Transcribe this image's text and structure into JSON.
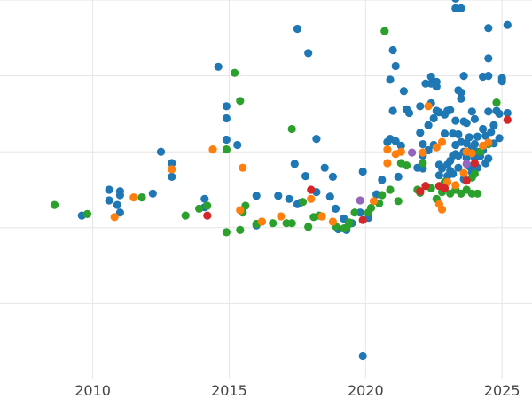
{
  "chart_data": {
    "type": "scatter",
    "title": "",
    "xlabel": "",
    "ylabel": "",
    "xlim": [
      2006.6,
      2026.1
    ],
    "ylim": [
      -1.0,
      4.0
    ],
    "x_ticks": [
      2010,
      2015,
      2020,
      2025
    ],
    "x_tick_labels": [
      "2010",
      "2015",
      "2020",
      "2025"
    ],
    "y_gridlines": [
      0,
      1,
      2,
      3,
      4
    ],
    "grid": true,
    "legend": "none",
    "series": [
      {
        "color": "#1f77b4",
        "points": [
          [
            2009.6,
            1.16
          ],
          [
            2010.6,
            1.5
          ],
          [
            2010.6,
            1.36
          ],
          [
            2011.0,
            1.48
          ],
          [
            2011.0,
            1.43
          ],
          [
            2010.9,
            1.3
          ],
          [
            2011.0,
            1.2
          ],
          [
            2012.2,
            1.45
          ],
          [
            2012.5,
            2.0
          ],
          [
            2012.9,
            1.67
          ],
          [
            2012.9,
            1.85
          ],
          [
            2014.1,
            1.38
          ],
          [
            2014.1,
            1.27
          ],
          [
            2014.6,
            3.12
          ],
          [
            2014.9,
            2.44
          ],
          [
            2014.9,
            2.6
          ],
          [
            2014.9,
            2.16
          ],
          [
            2015.3,
            2.09
          ],
          [
            2016.0,
            1.42
          ],
          [
            2016.0,
            1.03
          ],
          [
            2016.8,
            1.42
          ],
          [
            2017.2,
            1.38
          ],
          [
            2017.5,
            1.31
          ],
          [
            2017.4,
            1.84
          ],
          [
            2017.5,
            3.62
          ],
          [
            2017.6,
            1.33
          ],
          [
            2017.8,
            1.68
          ],
          [
            2017.9,
            3.3
          ],
          [
            2018.2,
            1.47
          ],
          [
            2018.2,
            2.17
          ],
          [
            2018.5,
            1.79
          ],
          [
            2018.7,
            1.41
          ],
          [
            2018.8,
            1.67
          ],
          [
            2018.9,
            1.25
          ],
          [
            2019.0,
            0.98
          ],
          [
            2019.2,
            1.12
          ],
          [
            2019.3,
            0.97
          ],
          [
            2019.5,
            1.06
          ],
          [
            2019.8,
            1.2
          ],
          [
            2019.9,
            1.74
          ],
          [
            2019.9,
            -0.69
          ],
          [
            2020.1,
            1.13
          ],
          [
            2020.4,
            1.44
          ],
          [
            2020.6,
            1.63
          ],
          [
            2020.8,
            2.13
          ],
          [
            2020.9,
            2.95
          ],
          [
            2020.9,
            2.17
          ],
          [
            2021.0,
            2.54
          ],
          [
            2021.0,
            3.34
          ],
          [
            2021.1,
            2.14
          ],
          [
            2021.1,
            3.13
          ],
          [
            2021.2,
            1.67
          ],
          [
            2021.3,
            2.08
          ],
          [
            2021.4,
            2.8
          ],
          [
            2021.5,
            2.56
          ],
          [
            2021.6,
            2.51
          ],
          [
            2021.9,
            1.79
          ],
          [
            2022.0,
            2.6
          ],
          [
            2022.0,
            2.25
          ],
          [
            2022.1,
            2.1
          ],
          [
            2022.1,
            1.95
          ],
          [
            2022.1,
            1.78
          ],
          [
            2022.2,
            2.9
          ],
          [
            2022.3,
            2.02
          ],
          [
            2022.3,
            2.35
          ],
          [
            2022.4,
            2.9
          ],
          [
            2022.4,
            2.99
          ],
          [
            2022.4,
            2.64
          ],
          [
            2022.5,
            2.44
          ],
          [
            2022.5,
            2.09
          ],
          [
            2022.6,
            2.86
          ],
          [
            2022.6,
            2.92
          ],
          [
            2022.6,
            2.54
          ],
          [
            2022.7,
            1.83
          ],
          [
            2022.7,
            1.69
          ],
          [
            2022.7,
            2.52
          ],
          [
            2022.8,
            1.78
          ],
          [
            2022.9,
            2.49
          ],
          [
            2022.9,
            2.24
          ],
          [
            2023.0,
            2.54
          ],
          [
            2023.0,
            1.83
          ],
          [
            2023.0,
            1.68
          ],
          [
            2023.1,
            2.55
          ],
          [
            2023.1,
            1.75
          ],
          [
            2023.1,
            1.88
          ],
          [
            2023.2,
            2.24
          ],
          [
            2023.2,
            1.71
          ],
          [
            2023.2,
            1.95
          ],
          [
            2023.3,
            4.02
          ],
          [
            2023.3,
            3.89
          ],
          [
            2023.3,
            2.41
          ],
          [
            2023.3,
            2.09
          ],
          [
            2023.3,
            1.97
          ],
          [
            2023.4,
            2.23
          ],
          [
            2023.4,
            1.95
          ],
          [
            2023.4,
            2.81
          ],
          [
            2023.4,
            1.79
          ],
          [
            2023.5,
            3.89
          ],
          [
            2023.5,
            2.7
          ],
          [
            2023.5,
            2.78
          ],
          [
            2023.5,
            2.13
          ],
          [
            2023.6,
            2.0
          ],
          [
            2023.6,
            3.0
          ],
          [
            2023.6,
            2.4
          ],
          [
            2023.6,
            1.64
          ],
          [
            2023.7,
            2.38
          ],
          [
            2023.7,
            1.92
          ],
          [
            2023.7,
            2.11
          ],
          [
            2023.8,
            2.19
          ],
          [
            2023.8,
            1.81
          ],
          [
            2023.9,
            2.53
          ],
          [
            2023.9,
            1.73
          ],
          [
            2023.9,
            2.04
          ],
          [
            2024.0,
            2.43
          ],
          [
            2024.0,
            2.1
          ],
          [
            2024.0,
            1.92
          ],
          [
            2024.1,
            2.2
          ],
          [
            2024.1,
            1.79
          ],
          [
            2024.1,
            2.0
          ],
          [
            2024.2,
            1.94
          ],
          [
            2024.3,
            2.99
          ],
          [
            2024.3,
            2.3
          ],
          [
            2024.3,
            2.02
          ],
          [
            2024.4,
            2.21
          ],
          [
            2024.4,
            1.85
          ],
          [
            2024.5,
            3.63
          ],
          [
            2024.5,
            3.23
          ],
          [
            2024.5,
            2.53
          ],
          [
            2024.5,
            3.0
          ],
          [
            2024.5,
            1.91
          ],
          [
            2024.6,
            2.26
          ],
          [
            2024.7,
            2.35
          ],
          [
            2024.7,
            2.11
          ],
          [
            2024.8,
            2.54
          ],
          [
            2024.9,
            2.5
          ],
          [
            2024.9,
            2.18
          ],
          [
            2025.0,
            2.97
          ],
          [
            2025.0,
            2.93
          ],
          [
            2025.2,
            3.67
          ],
          [
            2025.2,
            2.51
          ]
        ]
      },
      {
        "color": "#2ca02c",
        "points": [
          [
            2008.6,
            1.3
          ],
          [
            2009.8,
            1.18
          ],
          [
            2011.8,
            1.4
          ],
          [
            2013.4,
            1.16
          ],
          [
            2013.9,
            1.25
          ],
          [
            2014.2,
            1.29
          ],
          [
            2014.9,
            0.94
          ],
          [
            2014.9,
            2.03
          ],
          [
            2015.2,
            3.04
          ],
          [
            2015.4,
            0.97
          ],
          [
            2015.4,
            2.67
          ],
          [
            2015.5,
            1.2
          ],
          [
            2015.6,
            1.29
          ],
          [
            2016.0,
            1.05
          ],
          [
            2016.2,
            1.08
          ],
          [
            2016.6,
            1.06
          ],
          [
            2017.1,
            1.06
          ],
          [
            2017.3,
            1.06
          ],
          [
            2017.3,
            2.3
          ],
          [
            2017.7,
            1.34
          ],
          [
            2017.9,
            1.01
          ],
          [
            2018.1,
            1.14
          ],
          [
            2018.3,
            1.16
          ],
          [
            2018.9,
            1.02
          ],
          [
            2019.2,
            0.99
          ],
          [
            2019.3,
            1.0
          ],
          [
            2019.4,
            1.05
          ],
          [
            2019.4,
            1.07
          ],
          [
            2019.6,
            1.2
          ],
          [
            2020.1,
            1.2
          ],
          [
            2020.2,
            1.26
          ],
          [
            2020.5,
            1.32
          ],
          [
            2020.6,
            1.43
          ],
          [
            2020.7,
            3.59
          ],
          [
            2020.9,
            1.5
          ],
          [
            2021.2,
            1.35
          ],
          [
            2021.3,
            1.85
          ],
          [
            2021.5,
            1.82
          ],
          [
            2021.9,
            1.5
          ],
          [
            2022.0,
            1.46
          ],
          [
            2022.1,
            1.85
          ],
          [
            2022.2,
            1.55
          ],
          [
            2022.4,
            1.52
          ],
          [
            2022.6,
            1.38
          ],
          [
            2022.8,
            1.47
          ],
          [
            2022.9,
            1.6
          ],
          [
            2023.1,
            1.45
          ],
          [
            2023.3,
            1.5
          ],
          [
            2023.5,
            1.45
          ],
          [
            2023.7,
            1.5
          ],
          [
            2023.9,
            1.45
          ],
          [
            2023.9,
            1.66
          ],
          [
            2024.0,
            1.71
          ],
          [
            2024.1,
            1.45
          ],
          [
            2024.2,
            2.0
          ],
          [
            2024.5,
            2.1
          ],
          [
            2024.8,
            2.65
          ]
        ]
      },
      {
        "color": "#ff7f0e",
        "points": [
          [
            2010.8,
            1.14
          ],
          [
            2011.5,
            1.4
          ],
          [
            2012.9,
            1.77
          ],
          [
            2014.4,
            2.03
          ],
          [
            2015.4,
            1.23
          ],
          [
            2015.5,
            1.79
          ],
          [
            2016.2,
            1.08
          ],
          [
            2016.9,
            1.15
          ],
          [
            2018.0,
            1.38
          ],
          [
            2018.4,
            1.15
          ],
          [
            2018.8,
            1.08
          ],
          [
            2020.3,
            1.35
          ],
          [
            2020.8,
            2.03
          ],
          [
            2020.8,
            1.85
          ],
          [
            2021.1,
            1.97
          ],
          [
            2021.3,
            2.0
          ],
          [
            2022.1,
            1.99
          ],
          [
            2022.3,
            2.6
          ],
          [
            2022.6,
            2.06
          ],
          [
            2022.7,
            1.31
          ],
          [
            2022.8,
            1.24
          ],
          [
            2022.8,
            2.13
          ],
          [
            2023.0,
            1.6
          ],
          [
            2023.3,
            1.56
          ],
          [
            2023.6,
            1.72
          ],
          [
            2023.7,
            2.0
          ],
          [
            2023.9,
            1.98
          ],
          [
            2024.3,
            2.08
          ],
          [
            2024.5,
            2.12
          ]
        ]
      },
      {
        "color": "#d62728",
        "points": [
          [
            2014.2,
            1.16
          ],
          [
            2018.0,
            1.5
          ],
          [
            2019.9,
            1.1
          ],
          [
            2022.0,
            1.48
          ],
          [
            2022.2,
            1.55
          ],
          [
            2022.7,
            1.55
          ],
          [
            2022.9,
            1.52
          ],
          [
            2023.7,
            1.62
          ],
          [
            2024.0,
            1.85
          ],
          [
            2025.2,
            2.42
          ]
        ]
      },
      {
        "color": "#9467bd",
        "points": [
          [
            2019.8,
            1.36
          ],
          [
            2021.7,
            1.99
          ],
          [
            2023.7,
            1.84
          ]
        ]
      }
    ]
  }
}
